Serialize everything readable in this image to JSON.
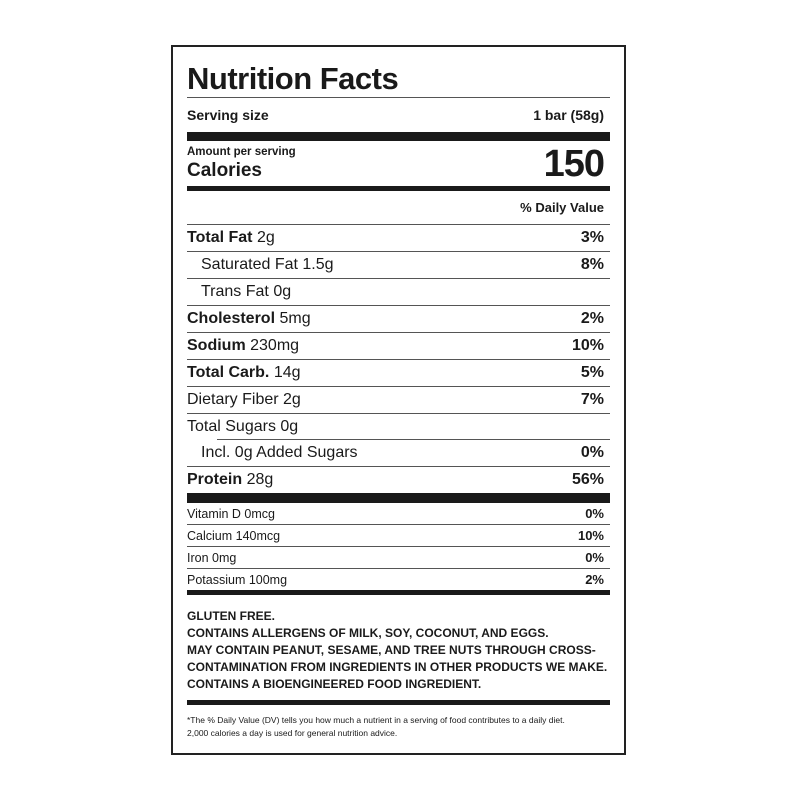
{
  "title": "Nutrition Facts",
  "serving": {
    "label": "Serving size",
    "value": "1 bar (58g)"
  },
  "calories": {
    "amount_label": "Amount per serving",
    "label": "Calories",
    "value": "150"
  },
  "dv_header": "% Daily Value",
  "nutrients": [
    {
      "name": "Total Fat",
      "amount": "2g",
      "dv": "3%"
    },
    {
      "name": "Saturated Fat 1.5g",
      "dv": "8%"
    },
    {
      "name": "Trans Fat 0g",
      "dv": ""
    },
    {
      "name": "Cholesterol",
      "amount": "5mg",
      "dv": "2%"
    },
    {
      "name": "Sodium",
      "amount": "230mg",
      "dv": "10%"
    },
    {
      "name": "Total Carb.",
      "amount": "14g",
      "dv": "5%"
    },
    {
      "name": "Dietary Fiber 2g",
      "dv": "7%"
    },
    {
      "name": "Total Sugars 0g",
      "dv": ""
    },
    {
      "name": "Incl. 0g Added Sugars",
      "dv": "0%"
    },
    {
      "name": "Protein",
      "amount": "28g",
      "dv": "56%"
    }
  ],
  "vitamins": [
    {
      "name": "Vitamin D 0mcg",
      "dv": "0%"
    },
    {
      "name": "Calcium 140mcg",
      "dv": "10%"
    },
    {
      "name": "Iron 0mg",
      "dv": "0%"
    },
    {
      "name": "Potassium 100mg",
      "dv": "2%"
    }
  ],
  "notes": [
    "GLUTEN FREE.",
    "CONTAINS ALLERGENS OF MILK, SOY, COCONUT, AND EGGS.",
    "MAY CONTAIN PEANUT, SESAME, AND TREE NUTS THROUGH CROSS-",
    "CONTAMINATION FROM INGREDIENTS IN OTHER PRODUCTS WE MAKE.",
    "CONTAINS A BIOENGINEERED FOOD INGREDIENT."
  ],
  "footnote": [
    "*The % Daily Value (DV) tells you how much a nutrient in a serving of food contributes to a daily diet.",
    "2,000 calories a day is used for general nutrition advice."
  ]
}
